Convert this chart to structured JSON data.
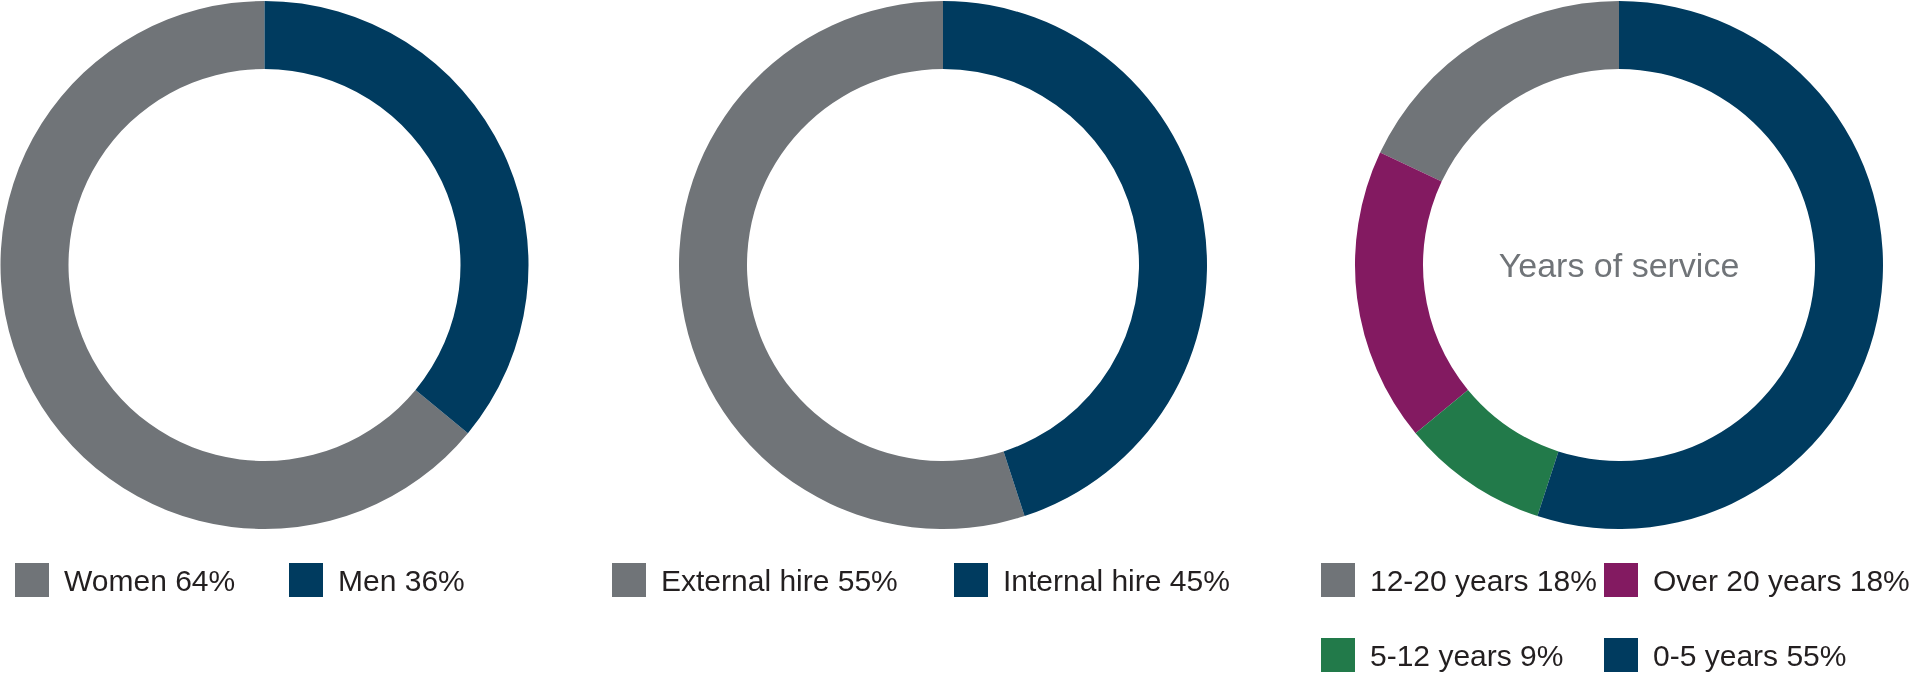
{
  "chart_data": [
    {
      "type": "donut",
      "categories": [
        "Women 64%",
        "Men 36%"
      ],
      "values": [
        64,
        36
      ],
      "colors": [
        "#707478",
        "#003b5f"
      ],
      "legend": "bottom"
    },
    {
      "type": "donut",
      "categories": [
        "External hire 55%",
        "Internal hire 45%"
      ],
      "values": [
        55,
        45
      ],
      "colors": [
        "#707478",
        "#003b5f"
      ],
      "legend": "bottom"
    },
    {
      "type": "donut",
      "title": "Years of service",
      "categories": [
        "12-20 years 18%",
        "Over 20 years 18%",
        "5-12 years 9%",
        "0-5 years 55%"
      ],
      "values": [
        18,
        18,
        9,
        55
      ],
      "colors": [
        "#707478",
        "#831a61",
        "#227a4a",
        "#003b5f"
      ],
      "legend": "bottom"
    }
  ]
}
